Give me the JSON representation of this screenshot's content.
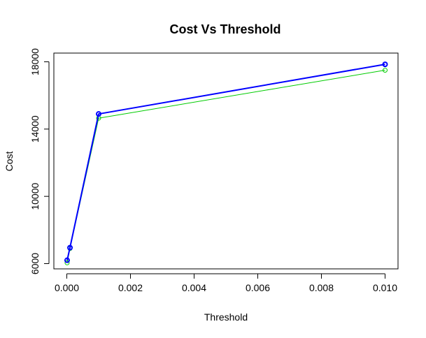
{
  "chart_data": {
    "type": "line",
    "title": "Cost Vs Threshold",
    "xlabel": "Threshold",
    "ylabel": "Cost",
    "xlim": [
      0,
      0.01
    ],
    "ylim": [
      6000,
      18000
    ],
    "x_ticks": [
      0.0,
      0.002,
      0.004,
      0.006,
      0.008,
      0.01
    ],
    "x_tick_labels": [
      "0.000",
      "0.002",
      "0.004",
      "0.006",
      "0.008",
      "0.010"
    ],
    "y_ticks": [
      6000,
      10000,
      14000,
      18000
    ],
    "y_tick_labels": [
      "6000",
      "10000",
      "14000",
      "18000"
    ],
    "grid": false,
    "legend": "none",
    "series": [
      {
        "color": "#0000ff",
        "line_width": 2,
        "marker": "circle",
        "points": [
          {
            "x": 1e-05,
            "y": 6200
          },
          {
            "x": 0.0001,
            "y": 6950
          },
          {
            "x": 0.001,
            "y": 14900
          },
          {
            "x": 0.01,
            "y": 17850
          }
        ]
      },
      {
        "color": "#00cc00",
        "line_width": 1,
        "marker": "circle",
        "points": [
          {
            "x": 1e-05,
            "y": 6050
          },
          {
            "x": 0.0001,
            "y": 6900
          },
          {
            "x": 0.001,
            "y": 14650
          },
          {
            "x": 0.01,
            "y": 17500
          }
        ]
      }
    ]
  }
}
